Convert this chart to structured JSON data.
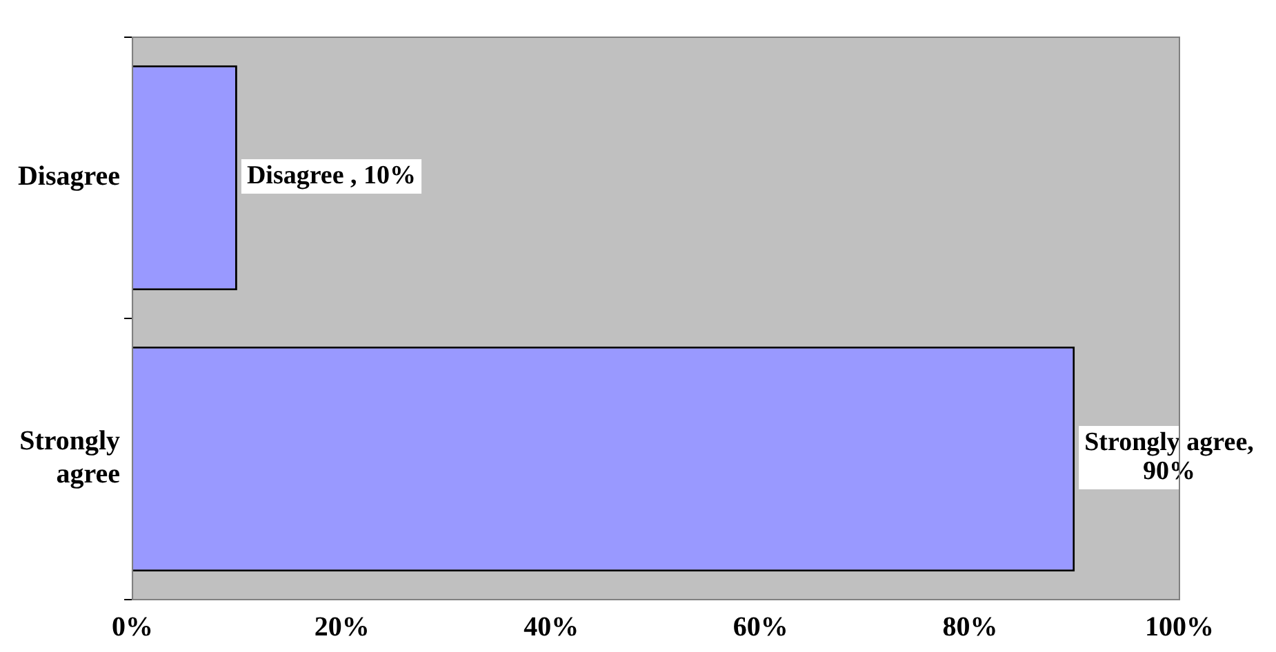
{
  "chart_data": {
    "type": "bar",
    "orientation": "horizontal",
    "categories": [
      "Disagree",
      "Strongly agree"
    ],
    "values": [
      10,
      90
    ],
    "color": "#9999ff",
    "value_labels": [
      "Disagree , 10%",
      "Strongly agree, 90%"
    ],
    "xlim": [
      0,
      100
    ],
    "xticks": [
      {
        "value": 0,
        "label": "0%"
      },
      {
        "value": 20,
        "label": "20%"
      },
      {
        "value": 40,
        "label": "40%"
      },
      {
        "value": 60,
        "label": "60%"
      },
      {
        "value": 80,
        "label": "80%"
      },
      {
        "value": 100,
        "label": "100%"
      }
    ],
    "legend": false
  }
}
